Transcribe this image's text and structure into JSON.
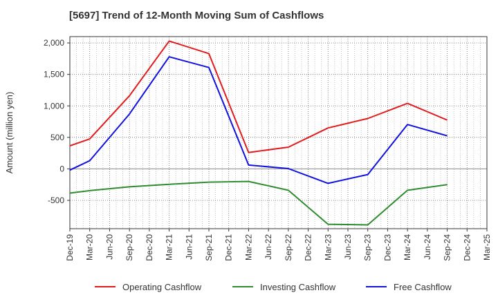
{
  "chart_data": {
    "type": "line",
    "title": "[5697]  Trend of 12-Month Moving Sum of Cashflows",
    "ylabel": "Amount (million yen)",
    "xlabel": "",
    "ylim": [
      -950,
      2100
    ],
    "yticks": [
      2000,
      1500,
      1000,
      500,
      0,
      -500
    ],
    "ytick_labels": [
      "2,000",
      "1,500",
      "1,000",
      "500",
      "0",
      "-500"
    ],
    "categories": [
      "Dec-19",
      "Mar-20",
      "Jun-20",
      "Sep-20",
      "Dec-20",
      "Mar-21",
      "Jun-21",
      "Sep-21",
      "Dec-21",
      "Mar-22",
      "Jun-22",
      "Sep-22",
      "Dec-22",
      "Mar-23",
      "Jun-23",
      "Sep-23",
      "Dec-23",
      "Mar-24",
      "Jun-24",
      "Sep-24",
      "Dec-24",
      "Mar-25"
    ],
    "grid": true,
    "legend_position": "bottom",
    "series": [
      {
        "name": "Operating Cashflow",
        "color": "#e31a1c",
        "values": [
          365,
          475,
          null,
          1160,
          null,
          2030,
          null,
          1830,
          null,
          260,
          null,
          345,
          null,
          650,
          null,
          800,
          null,
          1040,
          null,
          775,
          null,
          null
        ]
      },
      {
        "name": "Investing Cashflow",
        "color": "#2e8b2e",
        "values": [
          -385,
          -345,
          null,
          -285,
          null,
          -245,
          null,
          -210,
          null,
          -200,
          null,
          -340,
          null,
          -880,
          null,
          -890,
          null,
          -340,
          null,
          -250,
          null,
          null
        ]
      },
      {
        "name": "Free Cashflow",
        "color": "#1010e0",
        "values": [
          -20,
          130,
          null,
          870,
          null,
          1780,
          null,
          1610,
          null,
          60,
          null,
          5,
          null,
          -230,
          null,
          -90,
          null,
          705,
          null,
          525,
          null,
          null
        ]
      }
    ]
  }
}
